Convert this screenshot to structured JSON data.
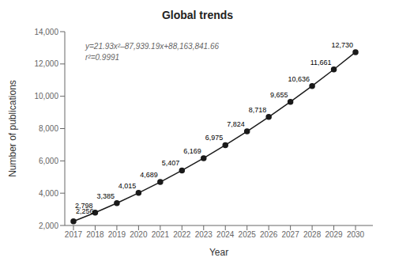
{
  "chart_data": {
    "type": "line",
    "title": "Global trends",
    "x_label": "Year",
    "y_label": "Number of publications",
    "x": [
      2017,
      2018,
      2019,
      2020,
      2021,
      2022,
      2023,
      2024,
      2025,
      2026,
      2027,
      2028,
      2029,
      2030
    ],
    "values": [
      2256,
      2798,
      3385,
      4015,
      4689,
      5407,
      6169,
      6975,
      7824,
      8718,
      9655,
      10636,
      11661,
      12730
    ],
    "value_labels": [
      "2,256",
      "2,798",
      "3,385",
      "4,015",
      "4,689",
      "5,407",
      "6,169",
      "6,975",
      "7,824",
      "8,718",
      "9,655",
      "10,636",
      "11,661",
      "12,730"
    ],
    "data_labels": true,
    "color": "#1a1a1a",
    "marker": "circle",
    "xlim": [
      2016.6,
      2030.8
    ],
    "xticks": [
      2017,
      2018,
      2019,
      2020,
      2021,
      2022,
      2023,
      2024,
      2025,
      2026,
      2027,
      2028,
      2029,
      2030
    ],
    "ylim": [
      2000,
      14000
    ],
    "yticks": [
      {
        "value": 2000,
        "label": "2,000"
      },
      {
        "value": 4000,
        "label": "4,000"
      },
      {
        "value": 6000,
        "label": "6,000"
      },
      {
        "value": 8000,
        "label": "8,000"
      },
      {
        "value": 10000,
        "label": "10,000"
      },
      {
        "value": 12000,
        "label": "12,000"
      },
      {
        "value": 14000,
        "label": "14,000"
      }
    ],
    "grid": false,
    "annotations": [
      "y=21.93x²–87,939.19x+88,163,841.66",
      "r²=0.9991"
    ]
  }
}
